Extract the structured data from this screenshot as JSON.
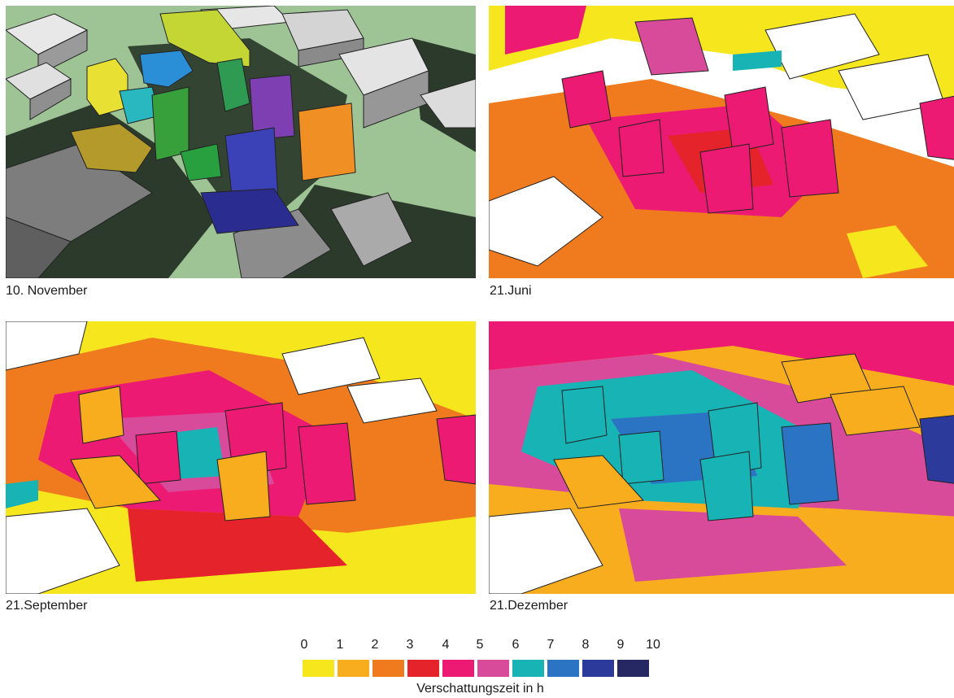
{
  "panels": [
    {
      "caption": "10. November"
    },
    {
      "caption": "21.Juni"
    },
    {
      "caption": "21.September"
    },
    {
      "caption": "21.Dezember"
    }
  ],
  "legend": {
    "ticks": [
      "0",
      "1",
      "2",
      "3",
      "4",
      "5",
      "6",
      "7",
      "8",
      "9",
      "10"
    ],
    "colors": [
      "#f5e61e",
      "#f7ad1e",
      "#f07b1e",
      "#e5232a",
      "#ec1a72",
      "#d84b9a",
      "#17b3b5",
      "#2a74c3",
      "#2c3a9b",
      "#262864"
    ],
    "title": "Verschattungszeit in h"
  },
  "model_colors": {
    "ground": "#9ec394",
    "shadow": "#2a3a2a",
    "building_gray": "#cfcfcf",
    "building_white": "#ffffff"
  }
}
